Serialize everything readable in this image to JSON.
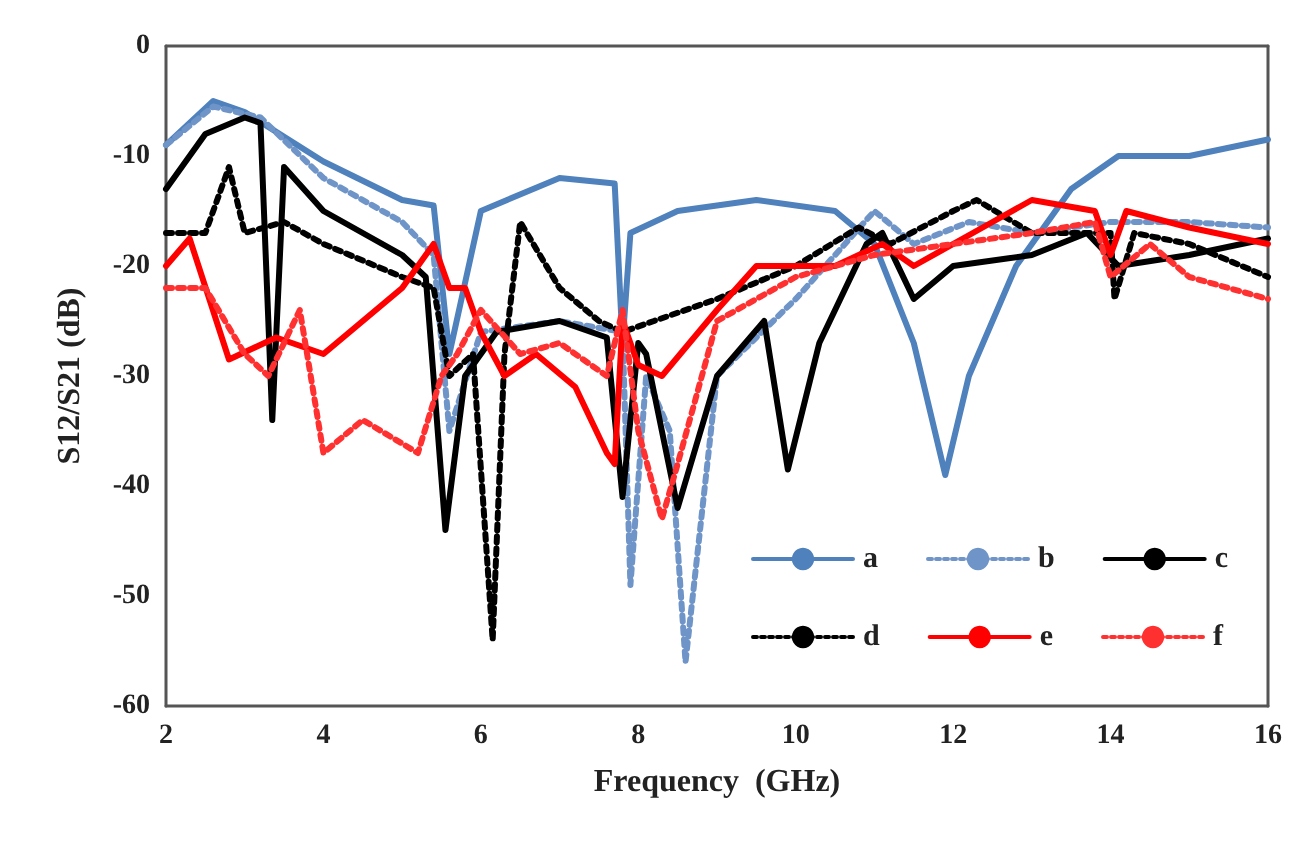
{
  "chart_data": {
    "type": "line",
    "xlabel": "Frequency  (GHz)",
    "ylabel": "S12/S21 (dB)",
    "xlim": [
      2,
      16
    ],
    "xticks": [
      2,
      4,
      6,
      8,
      10,
      12,
      14,
      16
    ],
    "ylim": [
      -60,
      0
    ],
    "yticks": [
      -60,
      -50,
      -40,
      -30,
      -20,
      -10,
      0
    ],
    "grid": false,
    "legend": "bottom right",
    "marker": "none",
    "series": [
      {
        "name": "a",
        "color": "#4f81bd",
        "line_style": "solid",
        "x": [
          2,
          2.6,
          3,
          4,
          5,
          5.4,
          5.6,
          6,
          7,
          7.7,
          7.8,
          7.9,
          8.5,
          9.5,
          10.5,
          11,
          11.5,
          11.9,
          12.2,
          12.8,
          13.5,
          14,
          14.1,
          15,
          16
        ],
        "values": [
          -9,
          -5,
          -6,
          -10.5,
          -14,
          -14.5,
          -28,
          -15,
          -12,
          -12.5,
          -27,
          -17,
          -15,
          -14,
          -15,
          -18,
          -27,
          -39,
          -30,
          -20,
          -13,
          -10.5,
          -10,
          -10,
          -8.5
        ]
      },
      {
        "name": "b",
        "color": "#6f95c8",
        "line_style": "dotted",
        "x": [
          2,
          2.6,
          3.2,
          4,
          5,
          5.4,
          5.6,
          6,
          7,
          7.8,
          7.9,
          8.1,
          8.4,
          8.6,
          9,
          10,
          11,
          11.5,
          12.2,
          13,
          14,
          15,
          16
        ],
        "values": [
          -9,
          -5.5,
          -6.5,
          -12,
          -16,
          -19,
          -35,
          -26,
          -25,
          -26,
          -49,
          -30,
          -35,
          -56,
          -30,
          -23,
          -15,
          -18,
          -16,
          -17,
          -16,
          -16,
          -16.5
        ]
      },
      {
        "name": "c",
        "color": "#000000",
        "line_style": "solid",
        "x": [
          2,
          2.5,
          3,
          3.2,
          3.35,
          3.5,
          4,
          5,
          5.3,
          5.55,
          5.8,
          6.2,
          7,
          7.6,
          7.8,
          8,
          8.1,
          8.5,
          9,
          9.6,
          9.9,
          10.3,
          10.9,
          11.1,
          11.5,
          12,
          13,
          13.7,
          14.1,
          15,
          16
        ],
        "values": [
          -13,
          -8,
          -6.5,
          -7,
          -34,
          -11,
          -15,
          -19,
          -21,
          -44,
          -30,
          -26,
          -25,
          -26.5,
          -41,
          -27,
          -28,
          -42,
          -30,
          -25,
          -38.5,
          -27,
          -18,
          -17,
          -23,
          -20,
          -19,
          -17,
          -20,
          -19,
          -17.5
        ]
      },
      {
        "name": "d",
        "color": "#000000",
        "line_style": "dotted",
        "x": [
          2,
          2.5,
          2.8,
          3,
          3.5,
          4,
          5,
          5.4,
          5.6,
          5.9,
          6.15,
          6.3,
          6.5,
          7,
          7.5,
          7.8,
          8.2,
          9,
          10,
          10.8,
          11.2,
          12,
          12.3,
          13,
          14,
          14.05,
          14.3,
          15,
          16
        ],
        "values": [
          -17,
          -17,
          -11,
          -17,
          -16,
          -18,
          -21,
          -22,
          -30,
          -28,
          -54,
          -28,
          -16,
          -22,
          -25,
          -26,
          -25,
          -23,
          -20,
          -16.5,
          -18,
          -15,
          -14,
          -17,
          -17,
          -23,
          -17,
          -18,
          -21
        ]
      },
      {
        "name": "e",
        "color": "#ff0000",
        "line_style": "solid",
        "x": [
          2,
          2.3,
          2.8,
          3.4,
          4,
          5,
          5.4,
          5.6,
          5.8,
          6,
          6.3,
          6.7,
          7.2,
          7.6,
          7.7,
          7.8,
          8,
          8.3,
          9,
          9.5,
          10.5,
          11.1,
          11.5,
          12.5,
          13,
          13.8,
          14,
          14.2,
          15,
          16
        ],
        "values": [
          -20,
          -17.5,
          -28.5,
          -26.5,
          -28,
          -22,
          -18,
          -22,
          -22,
          -26,
          -30,
          -28,
          -31,
          -37,
          -38,
          -25,
          -29,
          -30,
          -24,
          -20,
          -20,
          -18,
          -20,
          -16,
          -14,
          -15,
          -19,
          -15,
          -16.5,
          -18
        ]
      },
      {
        "name": "f",
        "color": "#ff3030",
        "line_style": "dotted",
        "x": [
          2,
          2.5,
          3,
          3.3,
          3.7,
          4,
          4.5,
          5.2,
          5.5,
          5.7,
          6,
          6.5,
          7,
          7.6,
          7.8,
          8,
          8.3,
          8.5,
          9,
          10,
          11,
          12,
          13,
          13.8,
          14,
          14.5,
          15,
          16
        ],
        "values": [
          -22,
          -22,
          -28,
          -30,
          -24,
          -37,
          -34,
          -37,
          -30,
          -28,
          -24,
          -28,
          -27,
          -30,
          -24,
          -35,
          -43,
          -38,
          -25,
          -21,
          -19,
          -18,
          -17,
          -16,
          -21,
          -18,
          -21,
          -23
        ]
      }
    ]
  }
}
